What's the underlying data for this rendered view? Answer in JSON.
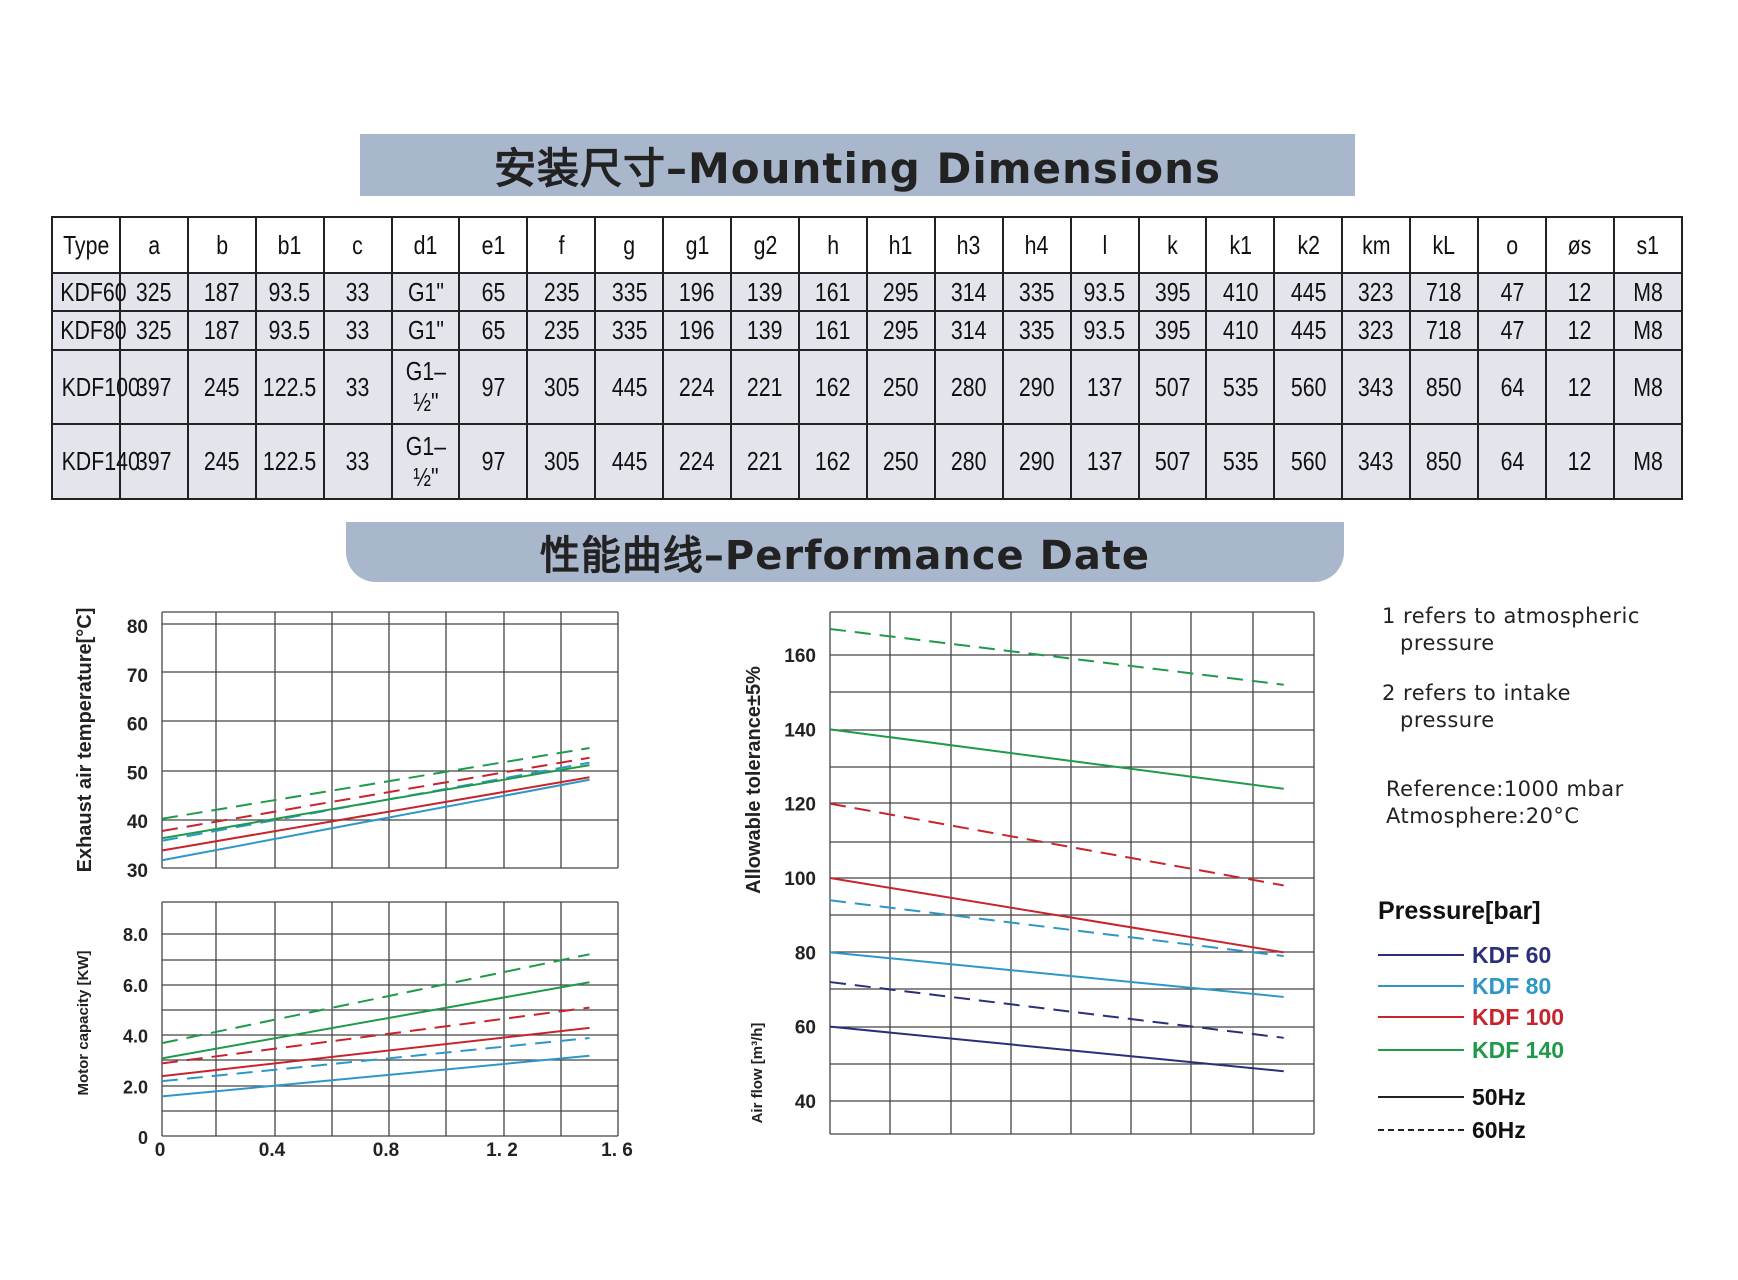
{
  "mounting": {
    "title": "安装尺寸–Mounting Dimensions",
    "columns": [
      "Type",
      "a",
      "b",
      "b1",
      "c",
      "d1",
      "e1",
      "f",
      "g",
      "g1",
      "g2",
      "h",
      "h1",
      "h3",
      "h4",
      "l",
      "k",
      "k1",
      "k2",
      "km",
      "kL",
      "o",
      "øs",
      "s1"
    ],
    "rows": [
      [
        "KDF60",
        "325",
        "187",
        "93.5",
        "33",
        "G1\"",
        "65",
        "235",
        "335",
        "196",
        "139",
        "161",
        "295",
        "314",
        "335",
        "93.5",
        "395",
        "410",
        "445",
        "323",
        "718",
        "47",
        "12",
        "M8"
      ],
      [
        "KDF80",
        "325",
        "187",
        "93.5",
        "33",
        "G1\"",
        "65",
        "235",
        "335",
        "196",
        "139",
        "161",
        "295",
        "314",
        "335",
        "93.5",
        "395",
        "410",
        "445",
        "323",
        "718",
        "47",
        "12",
        "M8"
      ],
      [
        "KDF100",
        "397",
        "245",
        "122.5",
        "33",
        "G1–½\"",
        "97",
        "305",
        "445",
        "224",
        "221",
        "162",
        "250",
        "280",
        "290",
        "137",
        "507",
        "535",
        "560",
        "343",
        "850",
        "64",
        "12",
        "M8"
      ],
      [
        "KDF140",
        "397",
        "245",
        "122.5",
        "33",
        "G1–½\"",
        "97",
        "305",
        "445",
        "224",
        "221",
        "162",
        "250",
        "280",
        "290",
        "137",
        "507",
        "535",
        "560",
        "343",
        "850",
        "64",
        "12",
        "M8"
      ]
    ]
  },
  "performance": {
    "title": "性能曲线–Performance Date"
  },
  "notes": {
    "line1a": "1 refers to atmospheric",
    "line1b": "pressure",
    "line2a": "2 refers to intake",
    "line2b": "pressure",
    "ref": "Reference:1000 mbar",
    "atm": "Atmosphere:20°C"
  },
  "legend": {
    "title": "Pressure[bar]",
    "models": [
      {
        "label": "KDF 60",
        "color": "#2b2f7a"
      },
      {
        "label": "KDF 80",
        "color": "#2f97c8"
      },
      {
        "label": "KDF 100",
        "color": "#c8242d"
      },
      {
        "label": "KDF 140",
        "color": "#1f9a4a"
      }
    ],
    "hz50": "50Hz",
    "hz60": "60Hz"
  },
  "chart_data": [
    {
      "type": "line",
      "ylabel": "Exhaust air temperature[°C]",
      "xlabel": "",
      "xlim": [
        0,
        1.6
      ],
      "ylim": [
        30,
        80
      ],
      "yticks": [
        "30",
        "40",
        "50",
        "60",
        "70",
        "80"
      ],
      "grid": true,
      "series": [
        {
          "model": "KDF 80",
          "freq": "50Hz",
          "color": "#2f97c8",
          "x": [
            0,
            1.5
          ],
          "y": [
            32,
            48.5
          ]
        },
        {
          "model": "KDF 80",
          "freq": "60Hz",
          "color": "#2f97c8",
          "x": [
            0,
            1.5
          ],
          "y": [
            36,
            52
          ]
        },
        {
          "model": "KDF 100",
          "freq": "50Hz",
          "color": "#c8242d",
          "x": [
            0,
            1.5
          ],
          "y": [
            34,
            49
          ]
        },
        {
          "model": "KDF 100",
          "freq": "60Hz",
          "color": "#c8242d",
          "x": [
            0,
            1.5
          ],
          "y": [
            38,
            53
          ]
        },
        {
          "model": "KDF 140",
          "freq": "50Hz",
          "color": "#1f9a4a",
          "x": [
            0,
            1.5
          ],
          "y": [
            36.5,
            51.5
          ]
        },
        {
          "model": "KDF 140",
          "freq": "60Hz",
          "color": "#1f9a4a",
          "x": [
            0,
            1.5
          ],
          "y": [
            40.5,
            55
          ]
        }
      ]
    },
    {
      "type": "line",
      "ylabel": "Motor capacity [KW]",
      "xlabel": "",
      "xlim": [
        0,
        1.6
      ],
      "ylim": [
        0,
        8
      ],
      "xticks": [
        "0",
        "0.4",
        "0.8",
        "1. 2",
        "1. 6"
      ],
      "yticks": [
        "0",
        "2.0",
        "4.0",
        "6.0",
        "8.0"
      ],
      "grid": true,
      "series": [
        {
          "model": "KDF 80",
          "freq": "50Hz",
          "color": "#2f97c8",
          "x": [
            0,
            1.5
          ],
          "y": [
            1.6,
            3.2
          ]
        },
        {
          "model": "KDF 80",
          "freq": "60Hz",
          "color": "#2f97c8",
          "x": [
            0,
            1.5
          ],
          "y": [
            2.2,
            3.9
          ]
        },
        {
          "model": "KDF 100",
          "freq": "50Hz",
          "color": "#c8242d",
          "x": [
            0,
            1.5
          ],
          "y": [
            2.4,
            4.3
          ]
        },
        {
          "model": "KDF 100",
          "freq": "60Hz",
          "color": "#c8242d",
          "x": [
            0,
            1.5
          ],
          "y": [
            2.9,
            5.1
          ]
        },
        {
          "model": "KDF 140",
          "freq": "50Hz",
          "color": "#1f9a4a",
          "x": [
            0,
            1.5
          ],
          "y": [
            3.1,
            6.1
          ]
        },
        {
          "model": "KDF 140",
          "freq": "60Hz",
          "color": "#1f9a4a",
          "x": [
            0,
            1.5
          ],
          "y": [
            3.7,
            7.2
          ]
        }
      ]
    },
    {
      "type": "line",
      "ylabel": "Allowable tolerance±5%",
      "ylabel2": "Air flow [m³/h]",
      "xlim": [
        0,
        1.6
      ],
      "ylim": [
        35,
        168
      ],
      "yticks": [
        "40",
        "60",
        "80",
        "100",
        "120",
        "140",
        "160"
      ],
      "grid": true,
      "series": [
        {
          "model": "KDF 60",
          "freq": "50Hz",
          "color": "#2b2f7a",
          "x": [
            0,
            1.5
          ],
          "y": [
            60,
            48
          ]
        },
        {
          "model": "KDF 60",
          "freq": "60Hz",
          "color": "#2b2f7a",
          "x": [
            0,
            1.5
          ],
          "y": [
            72,
            57
          ]
        },
        {
          "model": "KDF 80",
          "freq": "50Hz",
          "color": "#2f97c8",
          "x": [
            0,
            1.5
          ],
          "y": [
            80,
            68
          ]
        },
        {
          "model": "KDF 80",
          "freq": "60Hz",
          "color": "#2f97c8",
          "x": [
            0,
            1.5
          ],
          "y": [
            94,
            79
          ]
        },
        {
          "model": "KDF 100",
          "freq": "50Hz",
          "color": "#c8242d",
          "x": [
            0,
            1.5
          ],
          "y": [
            100,
            80
          ]
        },
        {
          "model": "KDF 100",
          "freq": "60Hz",
          "color": "#c8242d",
          "x": [
            0,
            1.5
          ],
          "y": [
            120,
            98
          ]
        },
        {
          "model": "KDF 140",
          "freq": "50Hz",
          "color": "#1f9a4a",
          "x": [
            0,
            1.5
          ],
          "y": [
            140,
            124
          ]
        },
        {
          "model": "KDF 140",
          "freq": "60Hz",
          "color": "#1f9a4a",
          "x": [
            0,
            1.5
          ],
          "y": [
            167,
            152
          ]
        }
      ]
    }
  ]
}
